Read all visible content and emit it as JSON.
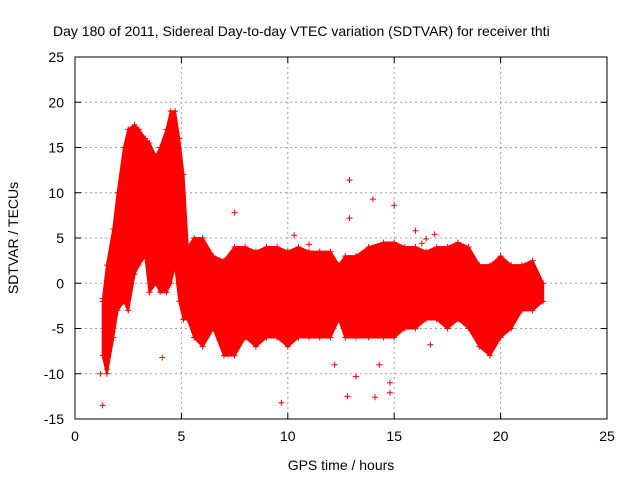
{
  "chart_data": {
    "type": "scatter",
    "title": "Day 180 of 2011, Sidereal Day-to-day VTEC variation (SDTVAR) for receiver thti",
    "xlabel": "GPS time / hours",
    "ylabel": "SDTVAR / TECUs",
    "xlim": [
      0,
      25
    ],
    "ylim": [
      -15,
      25
    ],
    "xticks": [
      0,
      5,
      10,
      15,
      20,
      25
    ],
    "yticks": [
      -15,
      -10,
      -5,
      0,
      5,
      10,
      15,
      20,
      25
    ],
    "grid": true,
    "marker": "+",
    "series_color": "#ff0000",
    "envelope": {
      "x": [
        1.3,
        1.5,
        1.8,
        2.0,
        2.3,
        2.5,
        2.8,
        3.0,
        3.3,
        3.5,
        3.8,
        4.0,
        4.3,
        4.5,
        4.7,
        4.9,
        5.1,
        5.3,
        5.6,
        6.0,
        6.5,
        7.0,
        7.5,
        8.0,
        8.5,
        9.0,
        9.5,
        10.0,
        10.5,
        11.0,
        11.5,
        12.0,
        12.4,
        12.7,
        13.2,
        13.8,
        14.5,
        15.0,
        15.5,
        16.0,
        16.5,
        17.0,
        17.5,
        18.0,
        18.5,
        19.0,
        19.5,
        20.0,
        20.5,
        21.0,
        21.5,
        22.0
      ],
      "upper": [
        -2,
        2,
        6,
        10,
        15,
        17,
        17.5,
        17,
        16,
        15.5,
        14,
        15,
        17,
        19,
        19,
        16,
        12,
        4,
        5,
        5,
        3,
        2.5,
        4,
        4,
        3.5,
        4,
        4,
        3.5,
        4,
        3.5,
        3.5,
        3.5,
        2,
        3,
        3,
        4,
        4.5,
        4.5,
        4,
        4,
        3.5,
        4,
        4,
        4.5,
        4,
        2,
        2,
        3,
        2,
        2,
        2.5,
        0
      ],
      "lower": [
        -8,
        -10,
        -6,
        -3,
        -2,
        -3,
        1,
        2,
        3,
        -1,
        0,
        -1,
        -1,
        0,
        2,
        -2,
        -4,
        -4,
        -6,
        -7,
        -5,
        -8,
        -8,
        -6,
        -7,
        -6,
        -6,
        -7,
        -6,
        -6,
        -6,
        -6,
        -4,
        -6,
        -6,
        -6,
        -6,
        -6,
        -5,
        -5,
        -4,
        -4,
        -5,
        -4,
        -5,
        -7,
        -8,
        -6,
        -5,
        -3,
        -3,
        -2
      ]
    },
    "outliers": [
      [
        1.3,
        -13.5
      ],
      [
        1.2,
        -10
      ],
      [
        1.3,
        -1.7
      ],
      [
        1.5,
        -9.5
      ],
      [
        4.1,
        -8.2
      ],
      [
        3.5,
        14
      ],
      [
        3.9,
        7
      ],
      [
        7.5,
        7.8
      ],
      [
        9.7,
        -13.2
      ],
      [
        12.9,
        11.4
      ],
      [
        12.9,
        7.2
      ],
      [
        12.8,
        -12.5
      ],
      [
        13.2,
        -10.3
      ],
      [
        14.0,
        9.3
      ],
      [
        14.1,
        -12.6
      ],
      [
        14.8,
        -11
      ],
      [
        14.8,
        -12.1
      ],
      [
        15.0,
        8.6
      ],
      [
        16.0,
        5.8
      ],
      [
        16.5,
        4.9
      ],
      [
        16.9,
        5.4
      ],
      [
        16.7,
        -6.8
      ],
      [
        14.3,
        -9
      ],
      [
        10.3,
        5.3
      ],
      [
        12.2,
        -9
      ],
      [
        11.0,
        4.3
      ],
      [
        16.3,
        4.4
      ]
    ]
  }
}
